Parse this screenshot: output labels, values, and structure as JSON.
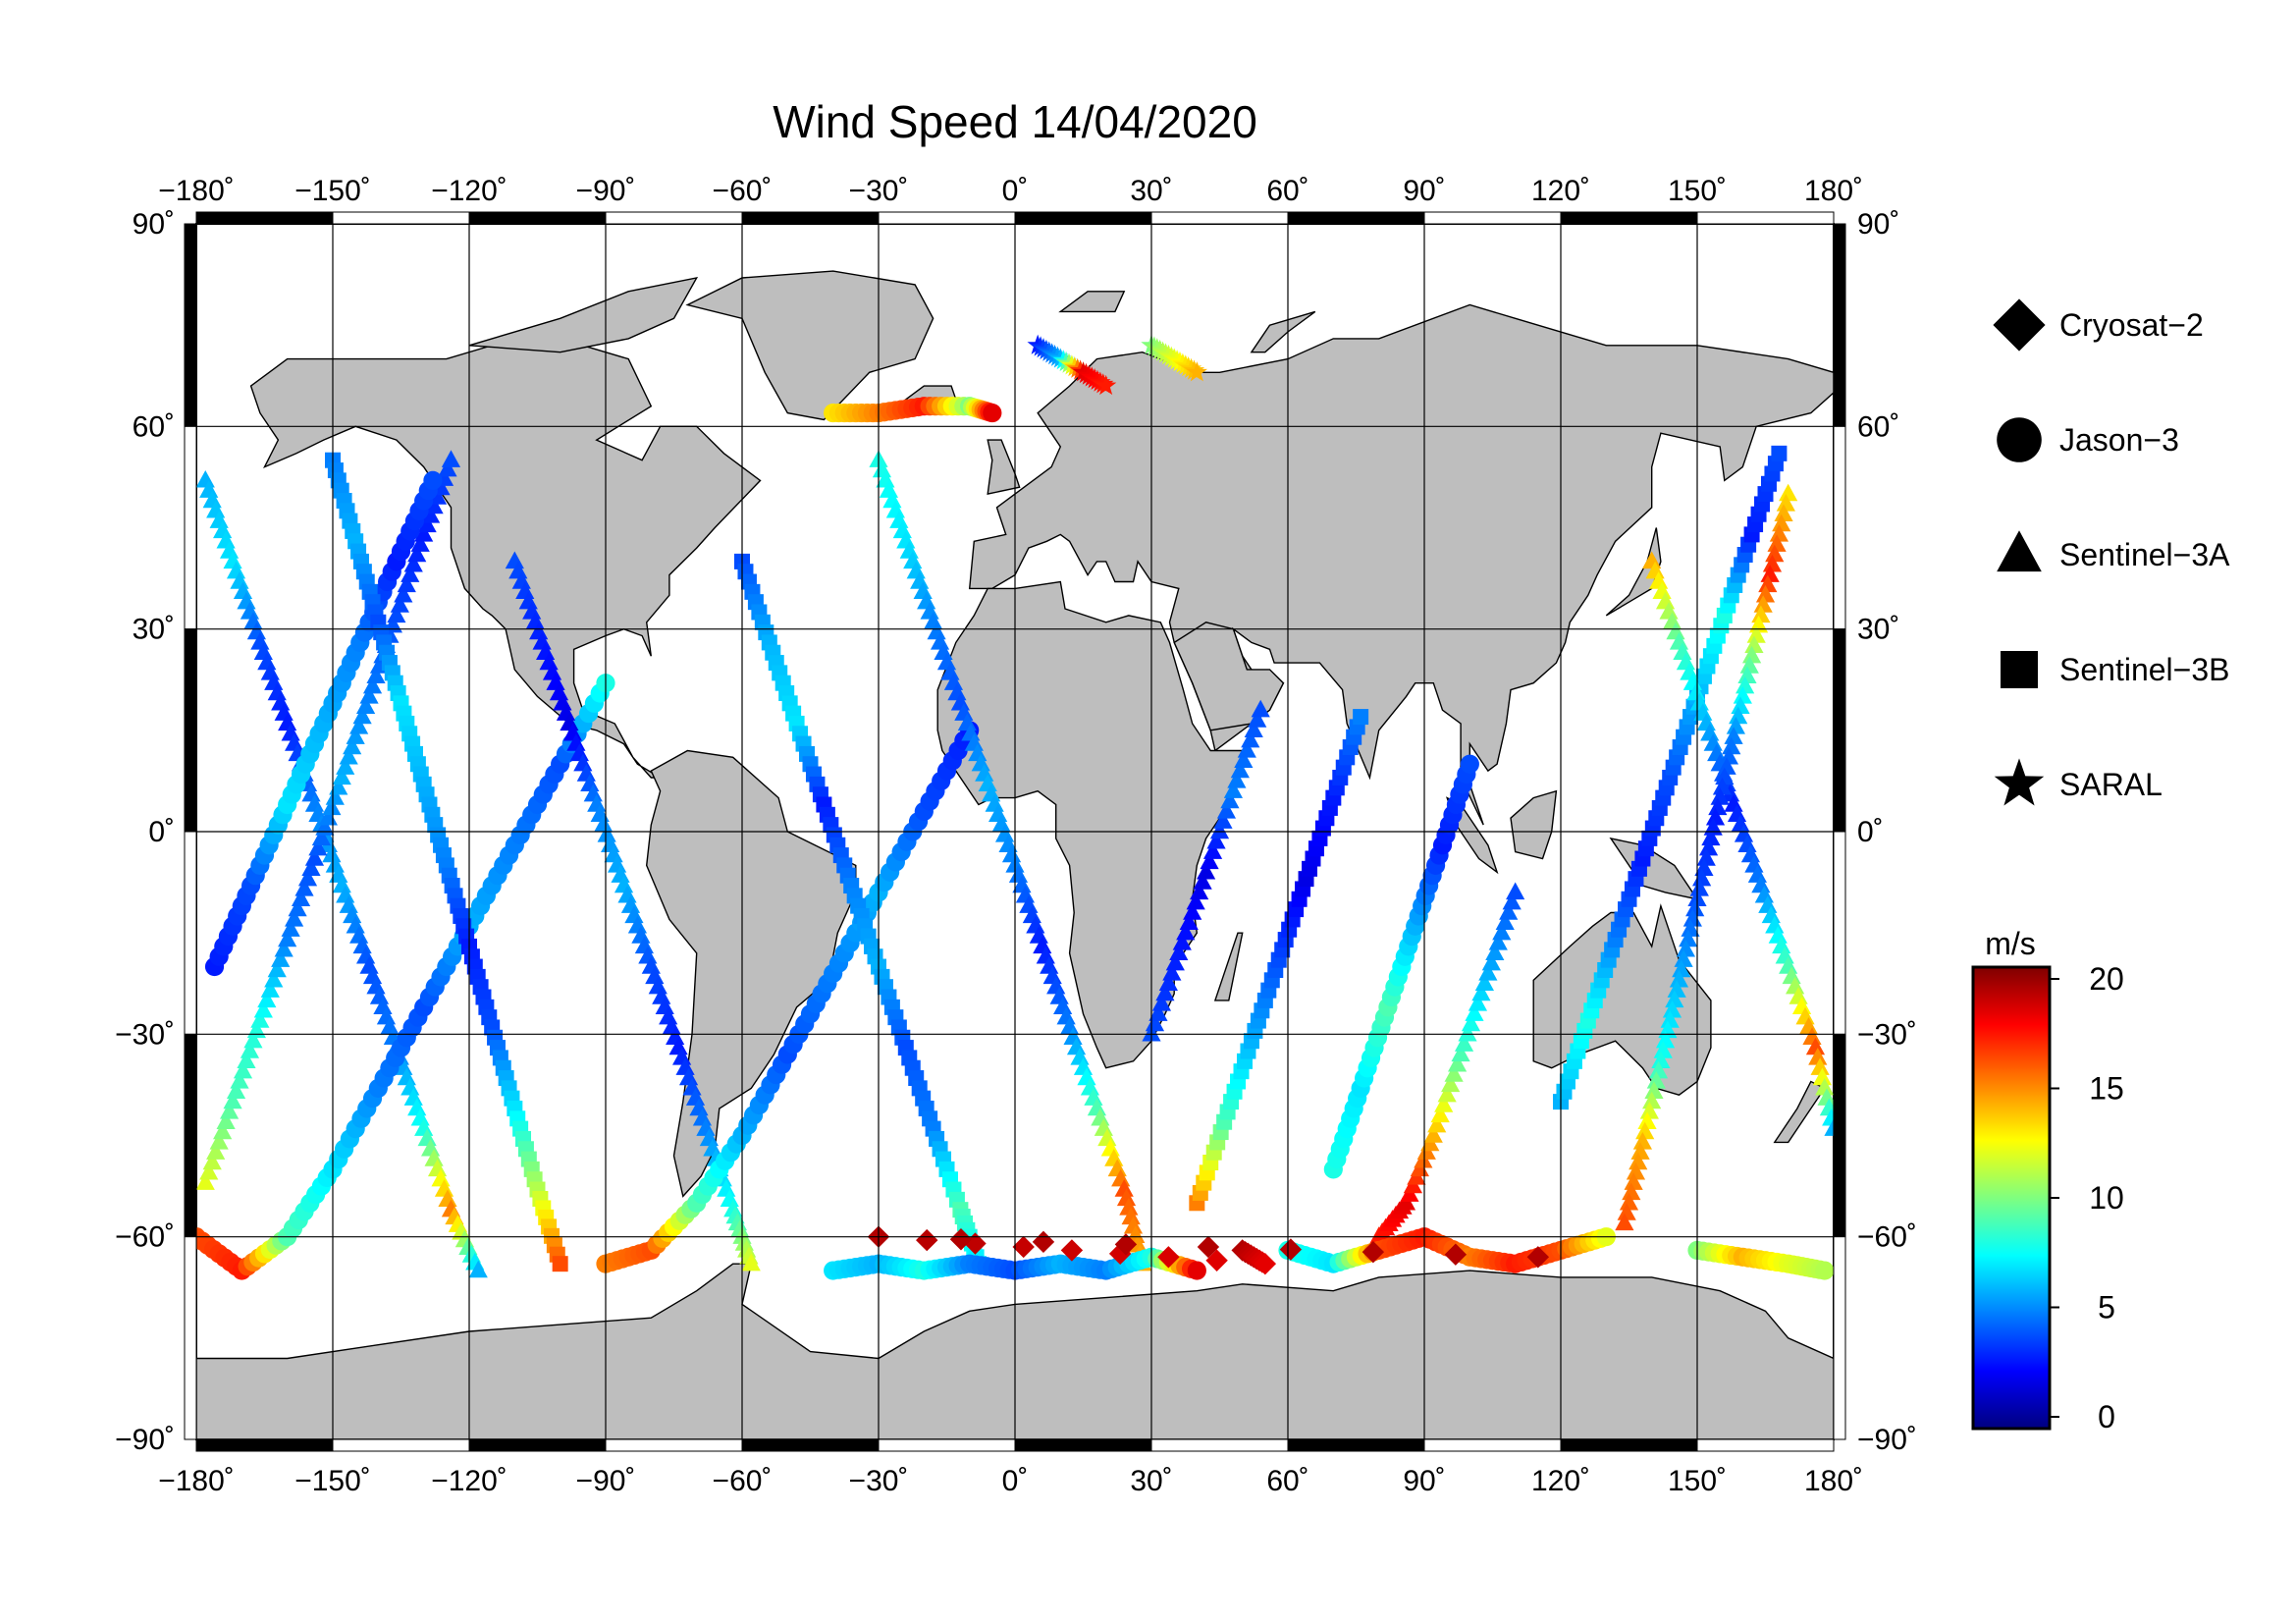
{
  "title": "Wind Speed 14/04/2020",
  "map": {
    "projection": "equirectangular",
    "land_color": "#bebebe",
    "coast_color": "#000000",
    "ocean_color": "#ffffff",
    "lon_range": [
      -180,
      180
    ],
    "lat_range": [
      -90,
      90
    ],
    "lon_ticks": [
      {
        "value": -180,
        "label": "−180˚"
      },
      {
        "value": -150,
        "label": "−150˚"
      },
      {
        "value": -120,
        "label": "−120˚"
      },
      {
        "value": -90,
        "label": "−90˚"
      },
      {
        "value": -60,
        "label": "−60˚"
      },
      {
        "value": -30,
        "label": "−30˚"
      },
      {
        "value": 0,
        "label": "0˚"
      },
      {
        "value": 30,
        "label": "30˚"
      },
      {
        "value": 60,
        "label": "60˚"
      },
      {
        "value": 90,
        "label": "90˚"
      },
      {
        "value": 120,
        "label": "120˚"
      },
      {
        "value": 150,
        "label": "150˚"
      },
      {
        "value": 180,
        "label": "180˚"
      }
    ],
    "lat_ticks": [
      {
        "value": 90,
        "label": "90˚"
      },
      {
        "value": 60,
        "label": "60˚"
      },
      {
        "value": 30,
        "label": "30˚"
      },
      {
        "value": 0,
        "label": "0˚"
      },
      {
        "value": -30,
        "label": "−30˚"
      },
      {
        "value": -60,
        "label": "−60˚"
      },
      {
        "value": -90,
        "label": "−90˚"
      }
    ]
  },
  "legend": [
    {
      "name": "Cryosat−2",
      "symbol": "diamond"
    },
    {
      "name": "Jason−3",
      "symbol": "circle"
    },
    {
      "name": "Sentinel−3A",
      "symbol": "triangle"
    },
    {
      "name": "Sentinel−3B",
      "symbol": "square"
    },
    {
      "name": "SARAL",
      "symbol": "star"
    }
  ],
  "colorbar": {
    "unit": "m/s",
    "min": 0,
    "max": 20,
    "ticks": [
      {
        "value": 20,
        "label": "20"
      },
      {
        "value": 15,
        "label": "15"
      },
      {
        "value": 10,
        "label": "10"
      },
      {
        "value": 5,
        "label": "5"
      },
      {
        "value": 0,
        "label": "0"
      }
    ],
    "colormap": [
      "#00007f",
      "#0000ff",
      "#007fff",
      "#00ffff",
      "#7fff7f",
      "#ffff00",
      "#ff7f00",
      "#ff0000",
      "#7f0000"
    ]
  },
  "chart_data": {
    "type": "scatter",
    "title": "Wind Speed 14/04/2020",
    "xlabel": "",
    "ylabel": "",
    "xlim": [
      -180,
      180
    ],
    "ylim": [
      -90,
      90
    ],
    "value_unit": "m/s",
    "value_range": [
      0,
      20
    ],
    "satellites": [
      "Cryosat−2",
      "Jason−3",
      "Sentinel−3A",
      "Sentinel−3B",
      "SARAL"
    ],
    "tracks": [
      {
        "satellite": "Sentinel−3A",
        "points": [
          [
            -178,
            52,
            6
          ],
          [
            -172,
            40,
            7
          ],
          [
            -166,
            28,
            4
          ],
          [
            -160,
            16,
            3
          ],
          [
            -154,
            4,
            5
          ],
          [
            -148,
            -8,
            6
          ],
          [
            -142,
            -20,
            4
          ],
          [
            -136,
            -32,
            5
          ],
          [
            -130,
            -44,
            8
          ],
          [
            -124,
            -56,
            15
          ],
          [
            -118,
            -65,
            6
          ]
        ]
      },
      {
        "satellite": "Sentinel−3A",
        "points": [
          [
            -178,
            -52,
            12
          ],
          [
            -172,
            -40,
            9
          ],
          [
            -166,
            -28,
            8
          ],
          [
            -160,
            -16,
            5
          ],
          [
            -154,
            -4,
            4
          ],
          [
            -148,
            8,
            6
          ],
          [
            -142,
            20,
            5
          ],
          [
            -136,
            32,
            4
          ],
          [
            -130,
            44,
            3
          ],
          [
            -124,
            55,
            4
          ]
        ]
      },
      {
        "satellite": "Jason−3",
        "points": [
          [
            -180,
            -60,
            16
          ],
          [
            -170,
            -65,
            17
          ],
          [
            -160,
            -60,
            9
          ],
          [
            -150,
            -50,
            7
          ],
          [
            -140,
            -38,
            5
          ],
          [
            -130,
            -26,
            4
          ],
          [
            -120,
            -14,
            6
          ],
          [
            -110,
            -2,
            5
          ],
          [
            -100,
            10,
            4
          ],
          [
            -90,
            22,
            8
          ]
        ]
      },
      {
        "satellite": "Jason−3",
        "points": [
          [
            -176,
            -20,
            3
          ],
          [
            -168,
            -8,
            4
          ],
          [
            -160,
            4,
            7
          ],
          [
            -152,
            16,
            6
          ],
          [
            -144,
            28,
            5
          ],
          [
            -136,
            40,
            3
          ],
          [
            -128,
            52,
            4
          ]
        ]
      },
      {
        "satellite": "Sentinel−3B",
        "points": [
          [
            -150,
            55,
            5
          ],
          [
            -145,
            43,
            6
          ],
          [
            -140,
            31,
            4
          ],
          [
            -135,
            19,
            7
          ],
          [
            -130,
            7,
            6
          ],
          [
            -125,
            -5,
            5
          ],
          [
            -120,
            -17,
            3
          ],
          [
            -115,
            -29,
            4
          ],
          [
            -110,
            -41,
            7
          ],
          [
            -105,
            -53,
            11
          ],
          [
            -100,
            -64,
            16
          ]
        ]
      },
      {
        "satellite": "Sentinel−3A",
        "points": [
          [
            -110,
            40,
            4
          ],
          [
            -104,
            28,
            3
          ],
          [
            -98,
            16,
            2
          ],
          [
            -92,
            4,
            5
          ],
          [
            -86,
            -8,
            6
          ],
          [
            -80,
            -20,
            4
          ],
          [
            -74,
            -32,
            3
          ],
          [
            -68,
            -44,
            5
          ],
          [
            -62,
            -56,
            8
          ],
          [
            -58,
            -64,
            12
          ]
        ]
      },
      {
        "satellite": "Jason−3",
        "points": [
          [
            -90,
            -64,
            15
          ],
          [
            -80,
            -62,
            16
          ],
          [
            -70,
            -55,
            9
          ],
          [
            -60,
            -45,
            6
          ],
          [
            -50,
            -33,
            4
          ],
          [
            -40,
            -21,
            5
          ],
          [
            -30,
            -9,
            6
          ],
          [
            -20,
            3,
            4
          ],
          [
            -10,
            15,
            3
          ]
        ]
      },
      {
        "satellite": "Sentinel−3B",
        "points": [
          [
            -60,
            40,
            4
          ],
          [
            -54,
            28,
            6
          ],
          [
            -48,
            16,
            7
          ],
          [
            -42,
            4,
            3
          ],
          [
            -36,
            -8,
            5
          ],
          [
            -30,
            -20,
            6
          ],
          [
            -24,
            -32,
            4
          ],
          [
            -18,
            -44,
            5
          ],
          [
            -12,
            -56,
            9
          ],
          [
            -8,
            -64,
            7
          ]
        ]
      },
      {
        "satellite": "Jason−3",
        "points": [
          [
            -40,
            62,
            13
          ],
          [
            -30,
            62,
            15
          ],
          [
            -20,
            63,
            17
          ],
          [
            -10,
            63,
            10
          ],
          [
            -5,
            62,
            18
          ]
        ]
      },
      {
        "satellite": "Sentinel−3A",
        "points": [
          [
            -30,
            55,
            8
          ],
          [
            -24,
            43,
            7
          ],
          [
            -18,
            31,
            5
          ],
          [
            -12,
            19,
            4
          ],
          [
            -6,
            7,
            6
          ],
          [
            0,
            -5,
            5
          ],
          [
            6,
            -17,
            3
          ],
          [
            12,
            -29,
            5
          ],
          [
            18,
            -41,
            9
          ],
          [
            24,
            -53,
            16
          ],
          [
            28,
            -64,
            14
          ]
        ]
      },
      {
        "satellite": "Jason−3",
        "points": [
          [
            -40,
            -65,
            7
          ],
          [
            -30,
            -64,
            6
          ],
          [
            -20,
            -65,
            8
          ],
          [
            -10,
            -64,
            5
          ],
          [
            0,
            -65,
            4
          ],
          [
            10,
            -64,
            6
          ],
          [
            20,
            -65,
            5
          ],
          [
            30,
            -63,
            8
          ],
          [
            40,
            -65,
            18
          ]
        ]
      },
      {
        "satellite": "Sentinel−3A",
        "points": [
          [
            30,
            -30,
            4
          ],
          [
            36,
            -18,
            3
          ],
          [
            42,
            -6,
            2
          ],
          [
            48,
            6,
            5
          ],
          [
            54,
            18,
            4
          ]
        ]
      },
      {
        "satellite": "Sentinel−3B",
        "points": [
          [
            40,
            -55,
            15
          ],
          [
            46,
            -43,
            9
          ],
          [
            52,
            -31,
            6
          ],
          [
            58,
            -19,
            4
          ],
          [
            64,
            -7,
            2
          ],
          [
            70,
            5,
            3
          ],
          [
            76,
            17,
            5
          ]
        ]
      },
      {
        "satellite": "Jason−3",
        "points": [
          [
            70,
            -50,
            8
          ],
          [
            76,
            -38,
            7
          ],
          [
            82,
            -26,
            9
          ],
          [
            88,
            -14,
            6
          ],
          [
            94,
            -2,
            3
          ],
          [
            100,
            10,
            4
          ]
        ]
      },
      {
        "satellite": "Sentinel−3A",
        "points": [
          [
            80,
            -60,
            17
          ],
          [
            86,
            -55,
            18
          ],
          [
            92,
            -45,
            14
          ],
          [
            98,
            -33,
            9
          ],
          [
            104,
            -21,
            6
          ],
          [
            110,
            -9,
            4
          ]
        ]
      },
      {
        "satellite": "Jason−3",
        "points": [
          [
            60,
            -62,
            8
          ],
          [
            70,
            -64,
            7
          ],
          [
            80,
            -62,
            16
          ],
          [
            90,
            -60,
            17
          ],
          [
            100,
            -63,
            15
          ],
          [
            110,
            -64,
            17
          ],
          [
            120,
            -62,
            16
          ],
          [
            130,
            -60,
            12
          ]
        ]
      },
      {
        "satellite": "Sentinel−3B",
        "points": [
          [
            120,
            -40,
            6
          ],
          [
            126,
            -28,
            8
          ],
          [
            132,
            -16,
            5
          ],
          [
            138,
            -4,
            3
          ],
          [
            144,
            8,
            4
          ],
          [
            150,
            20,
            6
          ],
          [
            156,
            32,
            8
          ],
          [
            162,
            44,
            3
          ],
          [
            168,
            56,
            4
          ]
        ]
      },
      {
        "satellite": "Sentinel−3A",
        "points": [
          [
            140,
            40,
            14
          ],
          [
            146,
            28,
            9
          ],
          [
            152,
            16,
            6
          ],
          [
            158,
            4,
            3
          ],
          [
            164,
            -8,
            5
          ],
          [
            170,
            -20,
            9
          ],
          [
            176,
            -32,
            16
          ],
          [
            180,
            -44,
            6
          ]
        ]
      },
      {
        "satellite": "Jason−3",
        "points": [
          [
            150,
            -62,
            10
          ],
          [
            160,
            -63,
            14
          ],
          [
            170,
            -64,
            12
          ],
          [
            178,
            -65,
            11
          ]
        ]
      },
      {
        "satellite": "Sentinel−3A",
        "points": [
          [
            170,
            50,
            13
          ],
          [
            166,
            38,
            17
          ],
          [
            162,
            26,
            10
          ],
          [
            158,
            14,
            5
          ],
          [
            154,
            2,
            3
          ],
          [
            150,
            -10,
            4
          ],
          [
            146,
            -22,
            6
          ],
          [
            142,
            -34,
            8
          ],
          [
            138,
            -46,
            14
          ],
          [
            134,
            -58,
            16
          ]
        ]
      },
      {
        "satellite": "SARAL",
        "points": [
          [
            5,
            72,
            3
          ],
          [
            10,
            70,
            6
          ],
          [
            15,
            68,
            18
          ],
          [
            20,
            66,
            17
          ]
        ]
      },
      {
        "satellite": "SARAL",
        "points": [
          [
            30,
            72,
            10
          ],
          [
            35,
            70,
            12
          ],
          [
            40,
            68,
            14
          ]
        ]
      },
      {
        "satellite": "Cryosat−2",
        "points": [
          [
            50,
            -62,
            19
          ],
          [
            55,
            -64,
            18
          ],
          [
            -30,
            -60,
            19
          ],
          [
            115,
            -63,
            19
          ]
        ]
      }
    ]
  }
}
